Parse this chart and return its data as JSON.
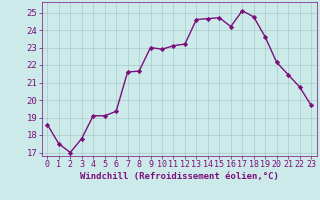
{
  "x": [
    0,
    1,
    2,
    3,
    4,
    5,
    6,
    7,
    8,
    9,
    10,
    11,
    12,
    13,
    14,
    15,
    16,
    17,
    18,
    19,
    20,
    21,
    22,
    23
  ],
  "y": [
    18.6,
    17.5,
    17.0,
    17.8,
    19.1,
    19.1,
    19.35,
    21.6,
    21.65,
    23.0,
    22.9,
    23.1,
    23.2,
    24.6,
    24.65,
    24.7,
    24.2,
    25.1,
    24.75,
    23.6,
    22.15,
    21.45,
    20.75,
    19.7
  ],
  "line_color": "#7B0F7B",
  "marker": "D",
  "marker_size": 2.2,
  "bg_color": "#cceaea",
  "grid_color": "#aacaca",
  "xlabel": "Windchill (Refroidissement éolien,°C)",
  "xlim": [
    -0.5,
    23.5
  ],
  "ylim": [
    16.8,
    25.6
  ],
  "yticks": [
    17,
    18,
    19,
    20,
    21,
    22,
    23,
    24,
    25
  ],
  "xticks": [
    0,
    1,
    2,
    3,
    4,
    5,
    6,
    7,
    8,
    9,
    10,
    11,
    12,
    13,
    14,
    15,
    16,
    17,
    18,
    19,
    20,
    21,
    22,
    23
  ],
  "tick_color": "#7B0F7B",
  "label_color": "#7B0F7B",
  "xlabel_fontsize": 6.5,
  "tick_fontsize": 6.0,
  "ytick_fontsize": 6.5,
  "linewidth": 1.0
}
